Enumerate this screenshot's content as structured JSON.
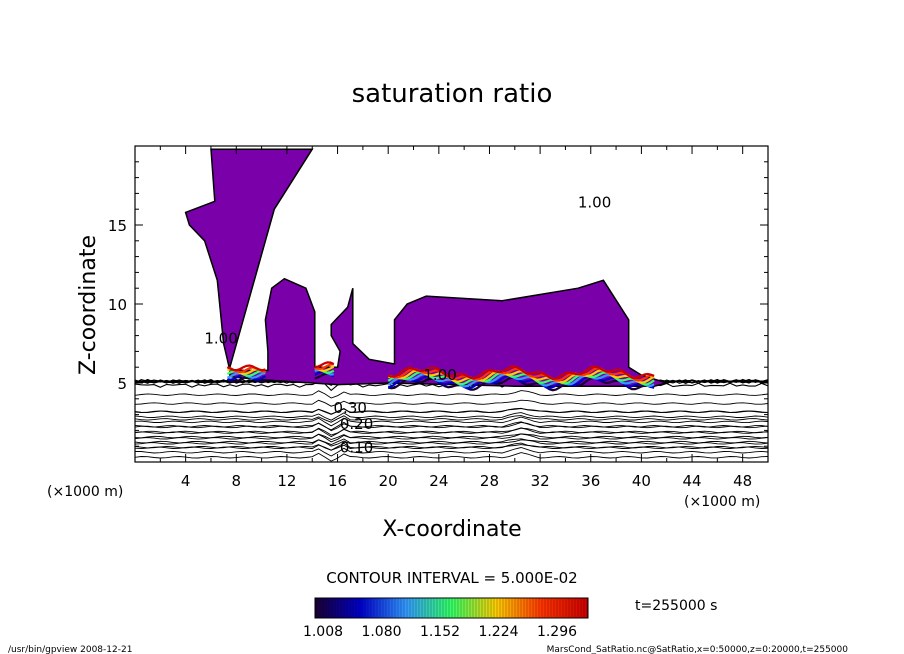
{
  "chart_data": {
    "type": "heatmap",
    "title": "saturation ratio",
    "xlabel": "X-coordinate",
    "ylabel": "Z-coordinate",
    "x_unit": "(×1000 m)",
    "y_unit": "(×1000 m)",
    "xlim": [
      0,
      50
    ],
    "ylim": [
      0,
      20
    ],
    "x_ticks": [
      4,
      8,
      12,
      16,
      20,
      24,
      28,
      32,
      36,
      40,
      44,
      48
    ],
    "y_ticks": [
      5,
      10,
      15
    ],
    "contour_interval_text": "CONTOUR INTERVAL = 5.000E-02",
    "contour_labels": [
      {
        "text": "0.10",
        "x": 17.5,
        "z": 0.6
      },
      {
        "text": "0.20",
        "x": 17.5,
        "z": 2.1
      },
      {
        "text": "0.30",
        "x": 17.0,
        "z": 3.1
      },
      {
        "text": "1.00",
        "x": 6.8,
        "z": 7.5
      },
      {
        "text": "1.00",
        "x": 36.3,
        "z": 16.1
      },
      {
        "text": "1.00",
        "x": 24.1,
        "z": 5.2
      }
    ],
    "cloud_region_outline": [
      [
        6.0,
        19.8
      ],
      [
        6.3,
        16.5
      ],
      [
        4.0,
        15.8
      ],
      [
        4.3,
        15.0
      ],
      [
        5.5,
        14.0
      ],
      [
        6.5,
        11.5
      ],
      [
        7.0,
        7.5
      ],
      [
        7.5,
        5.8
      ],
      [
        10.5,
        5.8
      ],
      [
        10.5,
        7.0
      ],
      [
        10.3,
        9.0
      ],
      [
        10.8,
        11.0
      ],
      [
        11.8,
        11.6
      ],
      [
        13.5,
        11.0
      ],
      [
        14.2,
        9.5
      ],
      [
        14.2,
        6.0
      ],
      [
        16.0,
        6.0
      ],
      [
        16.2,
        7.0
      ],
      [
        15.5,
        8.0
      ],
      [
        15.5,
        8.7
      ],
      [
        16.8,
        9.8
      ],
      [
        17.2,
        11.0
      ],
      [
        17.2,
        7.5
      ],
      [
        18.5,
        6.5
      ],
      [
        20.5,
        6.2
      ],
      [
        20.5,
        9.0
      ],
      [
        21.5,
        10.0
      ],
      [
        23.0,
        10.5
      ],
      [
        29.0,
        10.2
      ],
      [
        35.0,
        11.0
      ],
      [
        37.0,
        11.5
      ],
      [
        39.0,
        9.0
      ],
      [
        39.0,
        6.0
      ],
      [
        40.0,
        5.5
      ],
      [
        42.0,
        5.0
      ],
      [
        41.0,
        4.8
      ],
      [
        30.0,
        4.8
      ],
      [
        20.0,
        5.0
      ],
      [
        16.0,
        4.9
      ],
      [
        10.0,
        5.2
      ],
      [
        7.5,
        5.4
      ],
      [
        7.5,
        6.0
      ],
      [
        11.0,
        16.0
      ],
      [
        14.0,
        19.8
      ]
    ],
    "cloud_color": "#7A00AA",
    "colorbar": {
      "tick_labels": [
        "1.008",
        "1.080",
        "1.152",
        "1.224",
        "1.296"
      ],
      "colors": [
        "#1A0033",
        "#0000CC",
        "#3399FF",
        "#33FF66",
        "#FFCC00",
        "#FF3300",
        "#CC0000"
      ]
    },
    "time_label": "t=255000 s",
    "legend": "none",
    "grid": false
  },
  "footer": {
    "left": "/usr/bin/gpview  2008-12-21",
    "right": "MarsCond_SatRatio.nc@SatRatio,x=0:50000,z=0:20000,t=255000"
  }
}
